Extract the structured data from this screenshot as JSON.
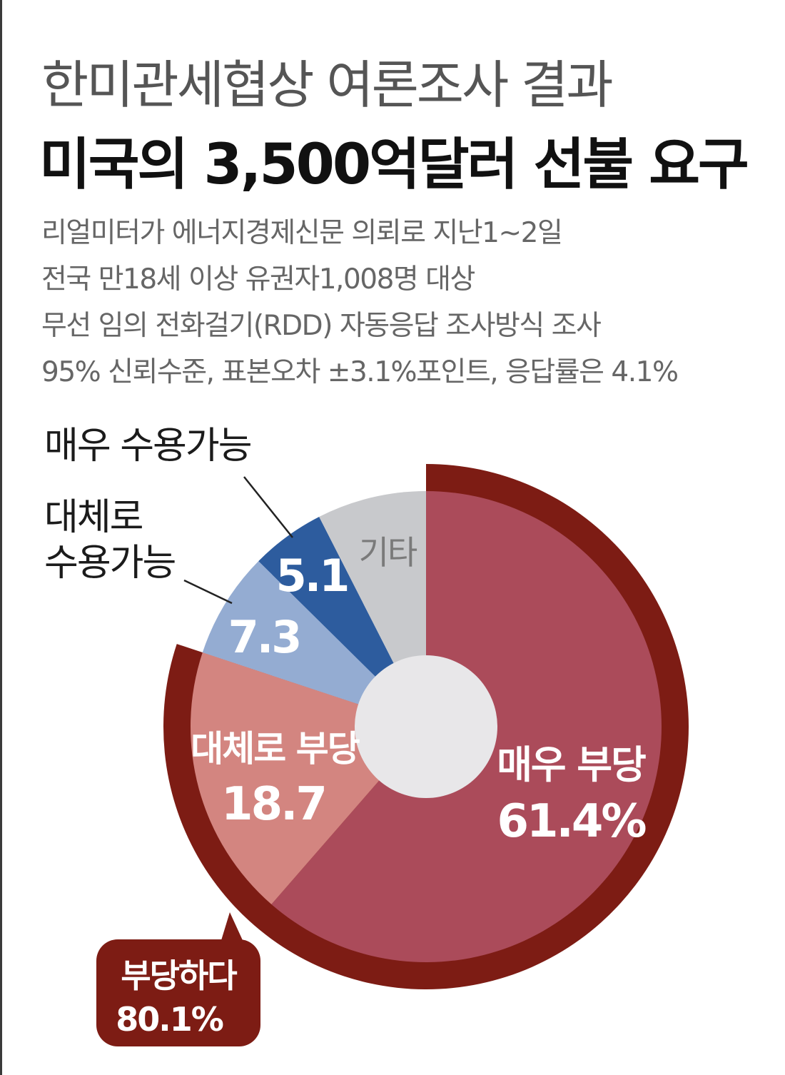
{
  "header": {
    "title": "한미관세협상 여론조사 결과",
    "subtitle": "미국의 3,500억달러 선불 요구",
    "notes": [
      "리얼미터가 에너지경제신문 의뢰로 지난1~2일",
      "전국 만18세 이상 유권자1,008명 대상",
      "무선 임의 전화걸기(RDD) 자동응답 조사방식 조사",
      "95% 신뢰수준, 표본오차 ±3.1%포인트, 응답률은 4.1%"
    ]
  },
  "chart_data": {
    "type": "pie",
    "donut": true,
    "unit": "%",
    "categories": [
      "매우 부당",
      "대체로 부당",
      "대체로 수용가능",
      "매우 수용가능",
      "기타"
    ],
    "values": [
      61.4,
      18.7,
      7.3,
      5.1,
      7.5
    ],
    "value_labels": [
      "61.4%",
      "18.7",
      "7.3",
      "5.1",
      ""
    ],
    "slice_labels": {
      "very_unfair": "매우 부당",
      "fairly_unfair": "대체로 부당",
      "other": "기타"
    },
    "callouts": {
      "very_acceptable": "매우 수용가능",
      "fairly_acceptable_line1": "대체로",
      "fairly_acceptable_line2": "수용가능"
    },
    "group_total": {
      "label": "부당하다",
      "value": 80.1,
      "value_label": "80.1%"
    },
    "colors": [
      "#ab4b5a",
      "#d38580",
      "#94acd2",
      "#2d5c9e",
      "#c8c9cc"
    ],
    "group_color": "#7d1c14",
    "hole_color": "#e8e7e9"
  }
}
